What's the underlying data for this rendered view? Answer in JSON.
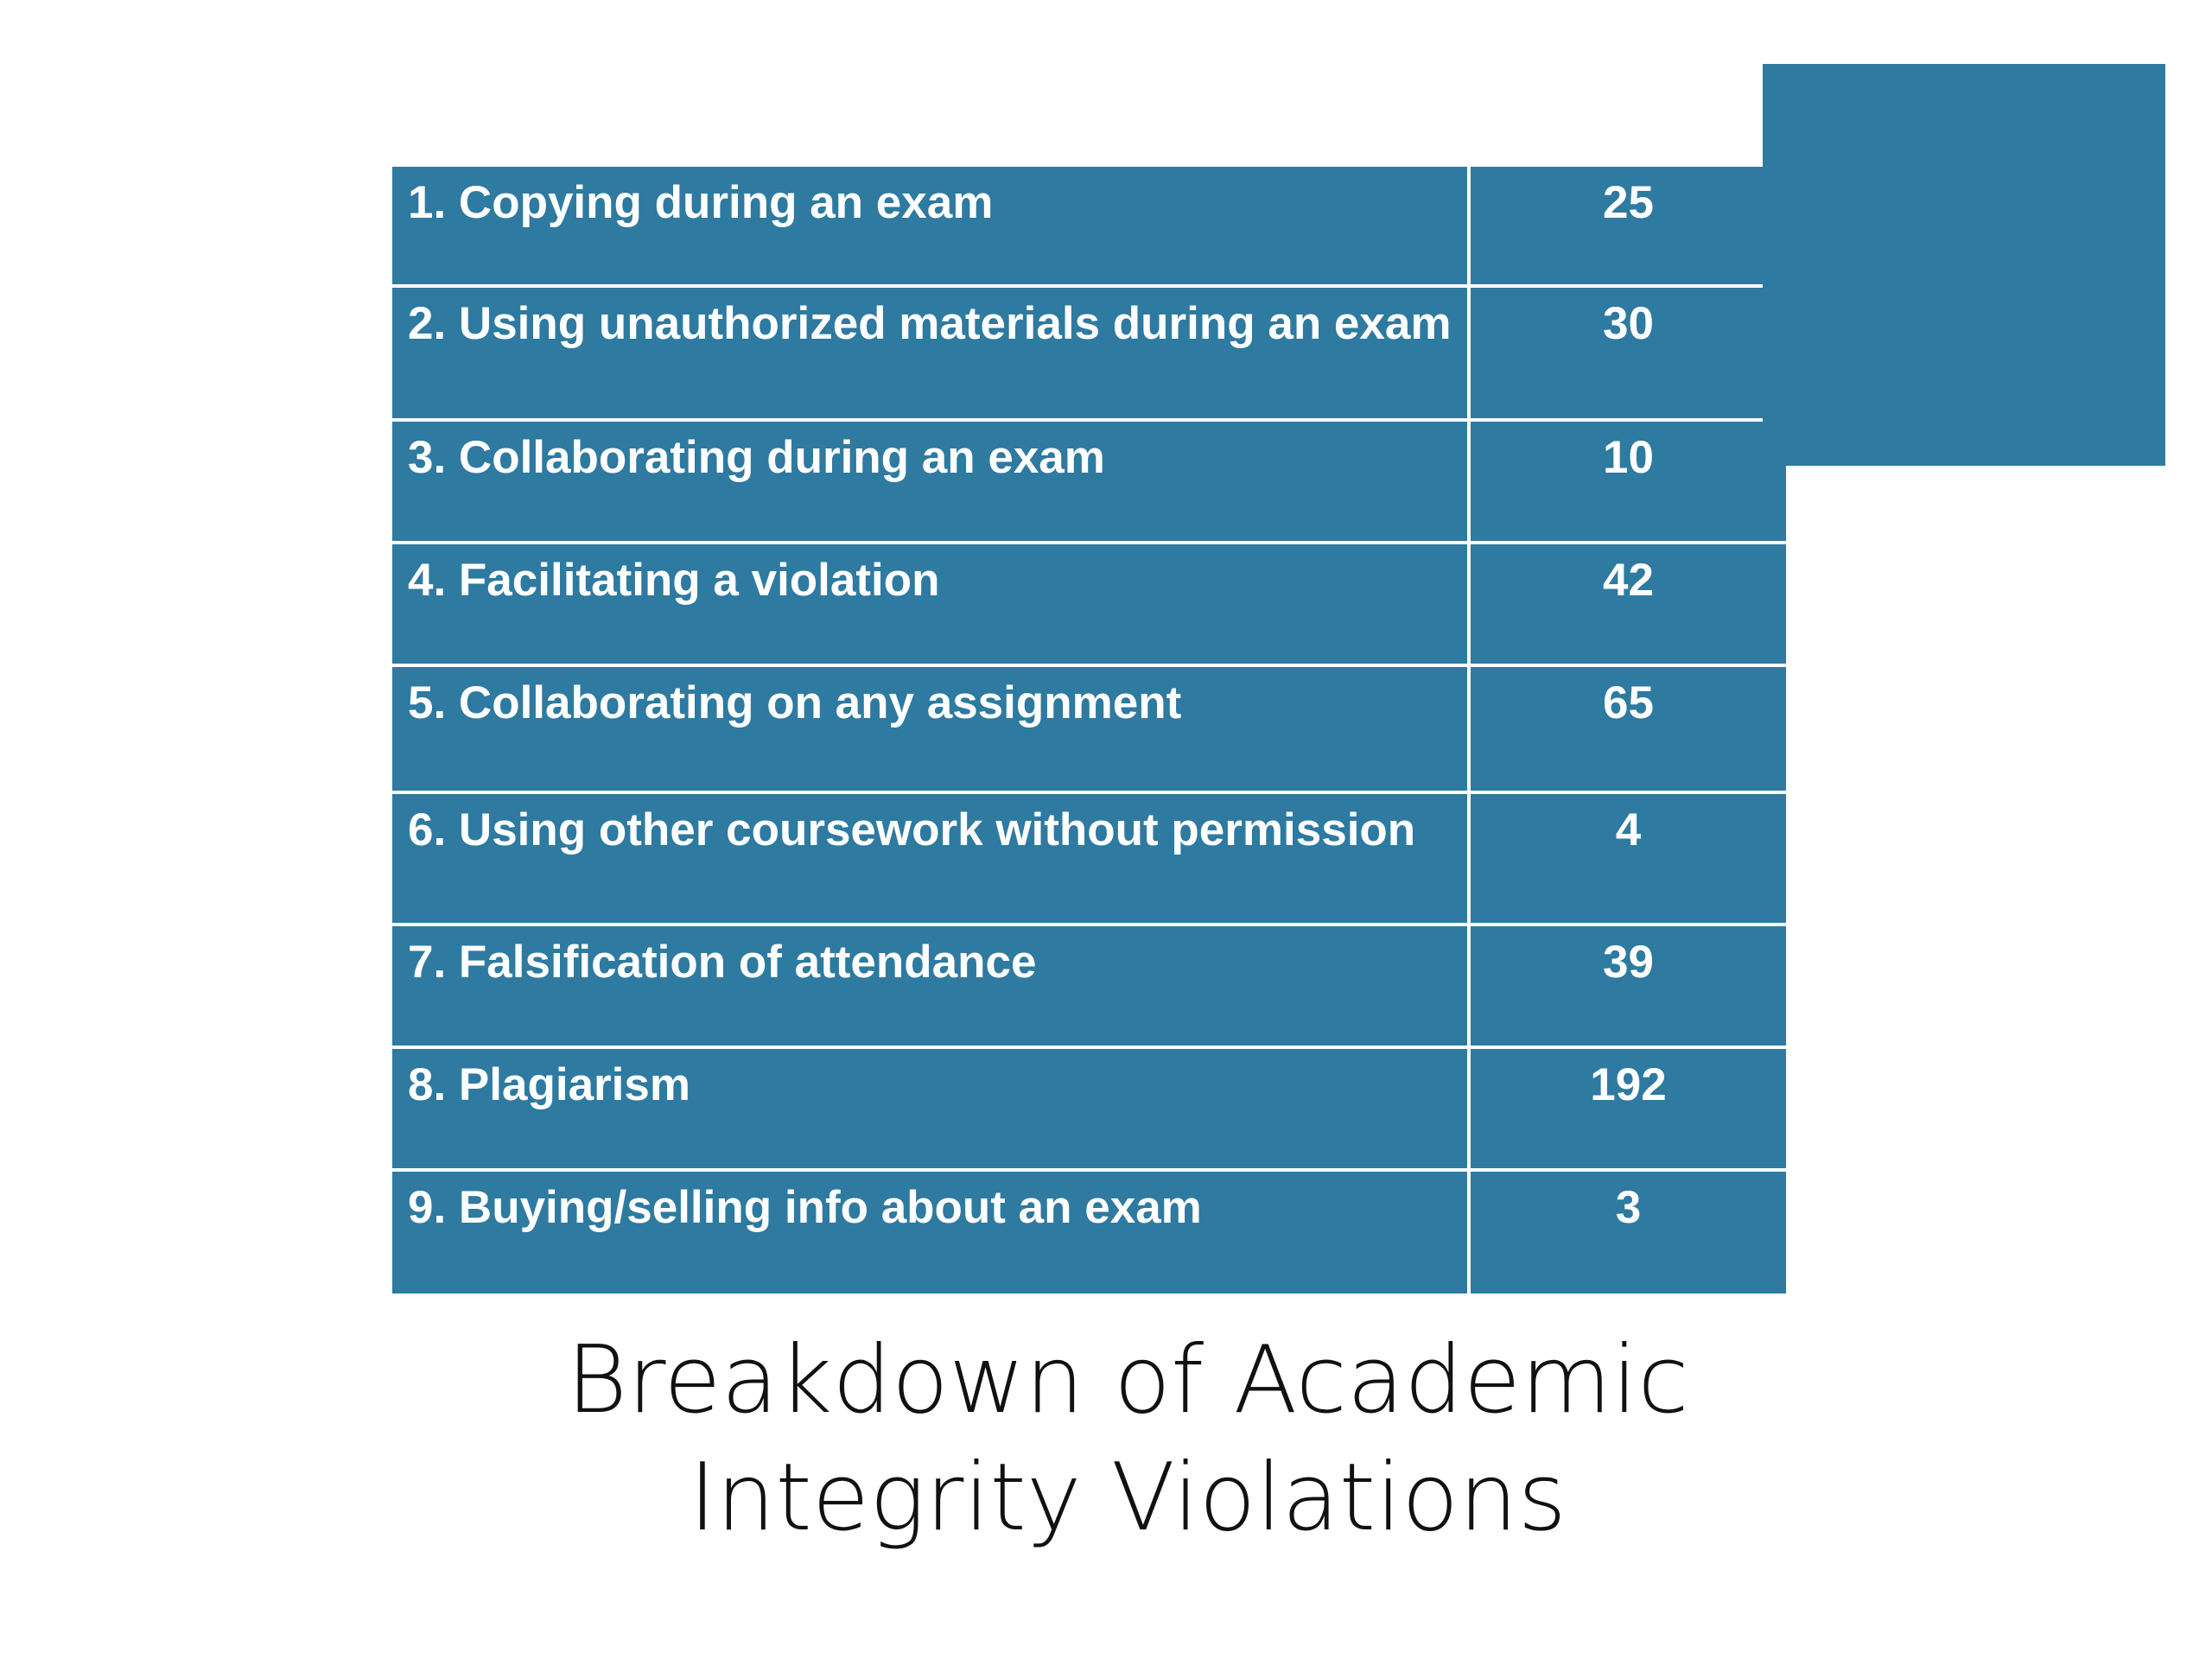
{
  "title": "Breakdown of Academic Integrity Violations",
  "table": {
    "rows": [
      [
        "1. Copying during an exam",
        "25"
      ],
      [
        "2. Using unauthorized materials during an exam",
        "30"
      ],
      [
        "3. Collaborating during an exam",
        "10"
      ],
      [
        "4. Facilitating a violation",
        "42"
      ],
      [
        "5. Collaborating on any assignment",
        "65"
      ],
      [
        "6. Using other coursework without permission",
        "4"
      ],
      [
        "7. Falsification of attendance",
        "39"
      ],
      [
        "8. Plagiarism",
        "192"
      ],
      [
        "9. Buying/selling info about an exam",
        "3"
      ]
    ]
  }
}
